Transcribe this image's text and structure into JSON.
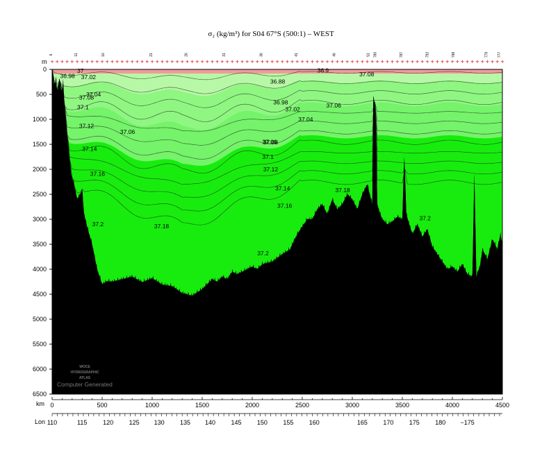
{
  "chart_data": {
    "type": "section",
    "title": "σ₂ (kg/m³) for S04 67°S (500:1) – WEST",
    "ylabel": "m",
    "xlabel": "km",
    "lon_label": "Lon",
    "ylim": [
      0,
      6500
    ],
    "xlim": [
      0,
      4500
    ],
    "y_ticks": [
      0,
      500,
      1000,
      1500,
      2000,
      2500,
      3000,
      3500,
      4000,
      4500,
      5000,
      5500,
      6000,
      6500
    ],
    "x_ticks": [
      0,
      500,
      1000,
      1500,
      2000,
      2500,
      3000,
      3500,
      4000,
      4500
    ],
    "lon_ticks": [
      {
        "km": 0,
        "label": "110"
      },
      {
        "km": 300,
        "label": "115"
      },
      {
        "km": 560,
        "label": "120"
      },
      {
        "km": 820,
        "label": "125"
      },
      {
        "km": 1070,
        "label": "130"
      },
      {
        "km": 1330,
        "label": "135"
      },
      {
        "km": 1580,
        "label": "140"
      },
      {
        "km": 1840,
        "label": "145"
      },
      {
        "km": 2100,
        "label": "150"
      },
      {
        "km": 2360,
        "label": "155"
      },
      {
        "km": 2620,
        "label": "160"
      },
      {
        "km": 3100,
        "label": "165"
      },
      {
        "km": 3360,
        "label": "170"
      },
      {
        "km": 3620,
        "label": "175"
      },
      {
        "km": 3880,
        "label": "180"
      },
      {
        "km": 4150,
        "label": "−175"
      }
    ],
    "stations": [
      {
        "km": 0,
        "label": "6"
      },
      {
        "km": 250,
        "label": "11"
      },
      {
        "km": 520,
        "label": "16"
      },
      {
        "km": 1000,
        "label": "21"
      },
      {
        "km": 1350,
        "label": "26"
      },
      {
        "km": 1730,
        "label": "31"
      },
      {
        "km": 2100,
        "label": "36"
      },
      {
        "km": 2450,
        "label": "41"
      },
      {
        "km": 2830,
        "label": "46"
      },
      {
        "km": 3170,
        "label": "51"
      },
      {
        "km": 3240,
        "label": "780"
      },
      {
        "km": 3500,
        "label": "787"
      },
      {
        "km": 3760,
        "label": "792"
      },
      {
        "km": 4020,
        "label": "798"
      },
      {
        "km": 4350,
        "label": "779"
      },
      {
        "km": 4480,
        "label": "777"
      }
    ],
    "contour_levels": [
      36.98,
      37.0,
      37.02,
      37.04,
      37.06,
      37.08,
      37.1,
      37.12,
      37.14,
      37.16,
      37.18,
      37.2
    ],
    "contour_labels": [
      {
        "text": "36.98",
        "km": 80,
        "depth": 130
      },
      {
        "text": "37",
        "km": 250,
        "depth": 30
      },
      {
        "text": "37.02",
        "km": 290,
        "depth": 150
      },
      {
        "text": "37.04",
        "km": 340,
        "depth": 500
      },
      {
        "text": "37.08",
        "km": 270,
        "depth": 560
      },
      {
        "text": "37.1",
        "km": 250,
        "depth": 760
      },
      {
        "text": "37.12",
        "km": 270,
        "depth": 1130
      },
      {
        "text": "37.06",
        "km": 680,
        "depth": 1250
      },
      {
        "text": "37.14",
        "km": 300,
        "depth": 1590
      },
      {
        "text": "37.16",
        "km": 380,
        "depth": 2090
      },
      {
        "text": "37.2",
        "km": 400,
        "depth": 3100
      },
      {
        "text": "37.18",
        "km": 1020,
        "depth": 3140
      },
      {
        "text": "36.88",
        "km": 2180,
        "depth": 240
      },
      {
        "text": "36.98",
        "km": 2210,
        "depth": 660
      },
      {
        "text": "37.02",
        "km": 2330,
        "depth": 800
      },
      {
        "text": "37.04",
        "km": 2460,
        "depth": 1000
      },
      {
        "text": "37.06",
        "km": 2740,
        "depth": 720
      },
      {
        "text": "37.06",
        "km": 2100,
        "depth": 1450
      },
      {
        "text": "37.08",
        "km": 2110,
        "depth": 1460
      },
      {
        "text": "37.1",
        "km": 2100,
        "depth": 1750
      },
      {
        "text": "37.12",
        "km": 2110,
        "depth": 2000
      },
      {
        "text": "37.14",
        "km": 2230,
        "depth": 2380
      },
      {
        "text": "37.16",
        "km": 2250,
        "depth": 2730
      },
      {
        "text": "37.18",
        "km": 2830,
        "depth": 2420
      },
      {
        "text": "37.2",
        "km": 2050,
        "depth": 3680
      },
      {
        "text": "37.2",
        "km": 3670,
        "depth": 2980
      },
      {
        "text": "37.08",
        "km": 3070,
        "depth": 100
      },
      {
        "text": "36.9",
        "km": 2650,
        "depth": 20
      }
    ],
    "bottom_profile_depth": [
      [
        0,
        0
      ],
      [
        20,
        300
      ],
      [
        40,
        200
      ],
      [
        55,
        500
      ],
      [
        70,
        200
      ],
      [
        80,
        250
      ],
      [
        95,
        500
      ],
      [
        110,
        200
      ],
      [
        130,
        900
      ],
      [
        160,
        1500
      ],
      [
        190,
        2100
      ],
      [
        220,
        2300
      ],
      [
        250,
        2600
      ],
      [
        280,
        2500
      ],
      [
        300,
        2400
      ],
      [
        320,
        2900
      ],
      [
        350,
        3150
      ],
      [
        400,
        3500
      ],
      [
        450,
        4000
      ],
      [
        500,
        4300
      ],
      [
        550,
        4240
      ],
      [
        600,
        4250
      ],
      [
        700,
        4200
      ],
      [
        800,
        4150
      ],
      [
        900,
        4260
      ],
      [
        1000,
        4180
      ],
      [
        1100,
        4310
      ],
      [
        1200,
        4340
      ],
      [
        1300,
        4480
      ],
      [
        1400,
        4530
      ],
      [
        1500,
        4400
      ],
      [
        1600,
        4200
      ],
      [
        1650,
        4250
      ],
      [
        1700,
        4150
      ],
      [
        1750,
        4200
      ],
      [
        1800,
        4050
      ],
      [
        1850,
        4100
      ],
      [
        1900,
        4050
      ],
      [
        1950,
        4000
      ],
      [
        2000,
        3950
      ],
      [
        2050,
        4000
      ],
      [
        2100,
        3900
      ],
      [
        2200,
        3850
      ],
      [
        2300,
        3700
      ],
      [
        2380,
        3600
      ],
      [
        2400,
        3500
      ],
      [
        2450,
        3300
      ],
      [
        2500,
        3150
      ],
      [
        2550,
        3000
      ],
      [
        2600,
        3000
      ],
      [
        2650,
        2800
      ],
      [
        2700,
        2700
      ],
      [
        2750,
        2900
      ],
      [
        2800,
        2600
      ],
      [
        2850,
        2800
      ],
      [
        2900,
        2700
      ],
      [
        2950,
        2500
      ],
      [
        3000,
        2600
      ],
      [
        3050,
        2800
      ],
      [
        3100,
        2500
      ],
      [
        3150,
        2300
      ],
      [
        3200,
        2700
      ],
      [
        3210,
        560
      ],
      [
        3230,
        700
      ],
      [
        3250,
        2700
      ],
      [
        3280,
        2900
      ],
      [
        3300,
        3000
      ],
      [
        3350,
        3100
      ],
      [
        3400,
        3050
      ],
      [
        3450,
        2950
      ],
      [
        3500,
        3000
      ],
      [
        3520,
        1700
      ],
      [
        3540,
        2900
      ],
      [
        3600,
        3300
      ],
      [
        3650,
        3100
      ],
      [
        3700,
        3350
      ],
      [
        3750,
        3200
      ],
      [
        3800,
        3550
      ],
      [
        3850,
        3700
      ],
      [
        3900,
        3850
      ],
      [
        3950,
        4000
      ],
      [
        4000,
        3950
      ],
      [
        4050,
        4050
      ],
      [
        4100,
        3900
      ],
      [
        4150,
        4100
      ],
      [
        4200,
        4150
      ],
      [
        4220,
        2100
      ],
      [
        4240,
        4150
      ],
      [
        4280,
        3900
      ],
      [
        4300,
        3600
      ],
      [
        4350,
        3800
      ],
      [
        4400,
        3400
      ],
      [
        4450,
        3600
      ],
      [
        4480,
        3300
      ],
      [
        4500,
        3500
      ]
    ]
  },
  "watermark": {
    "line1": "WOCE",
    "line2": "HYDROGRAPHIC",
    "line3": "ATLAS",
    "footer": "Computer Generated"
  },
  "colors": {
    "light_green": "#b7f8a6",
    "mid_green": "#75f36a",
    "bright_green": "#18ec0e",
    "surface_pink": "#f29b9b",
    "bottom": "#000000"
  }
}
